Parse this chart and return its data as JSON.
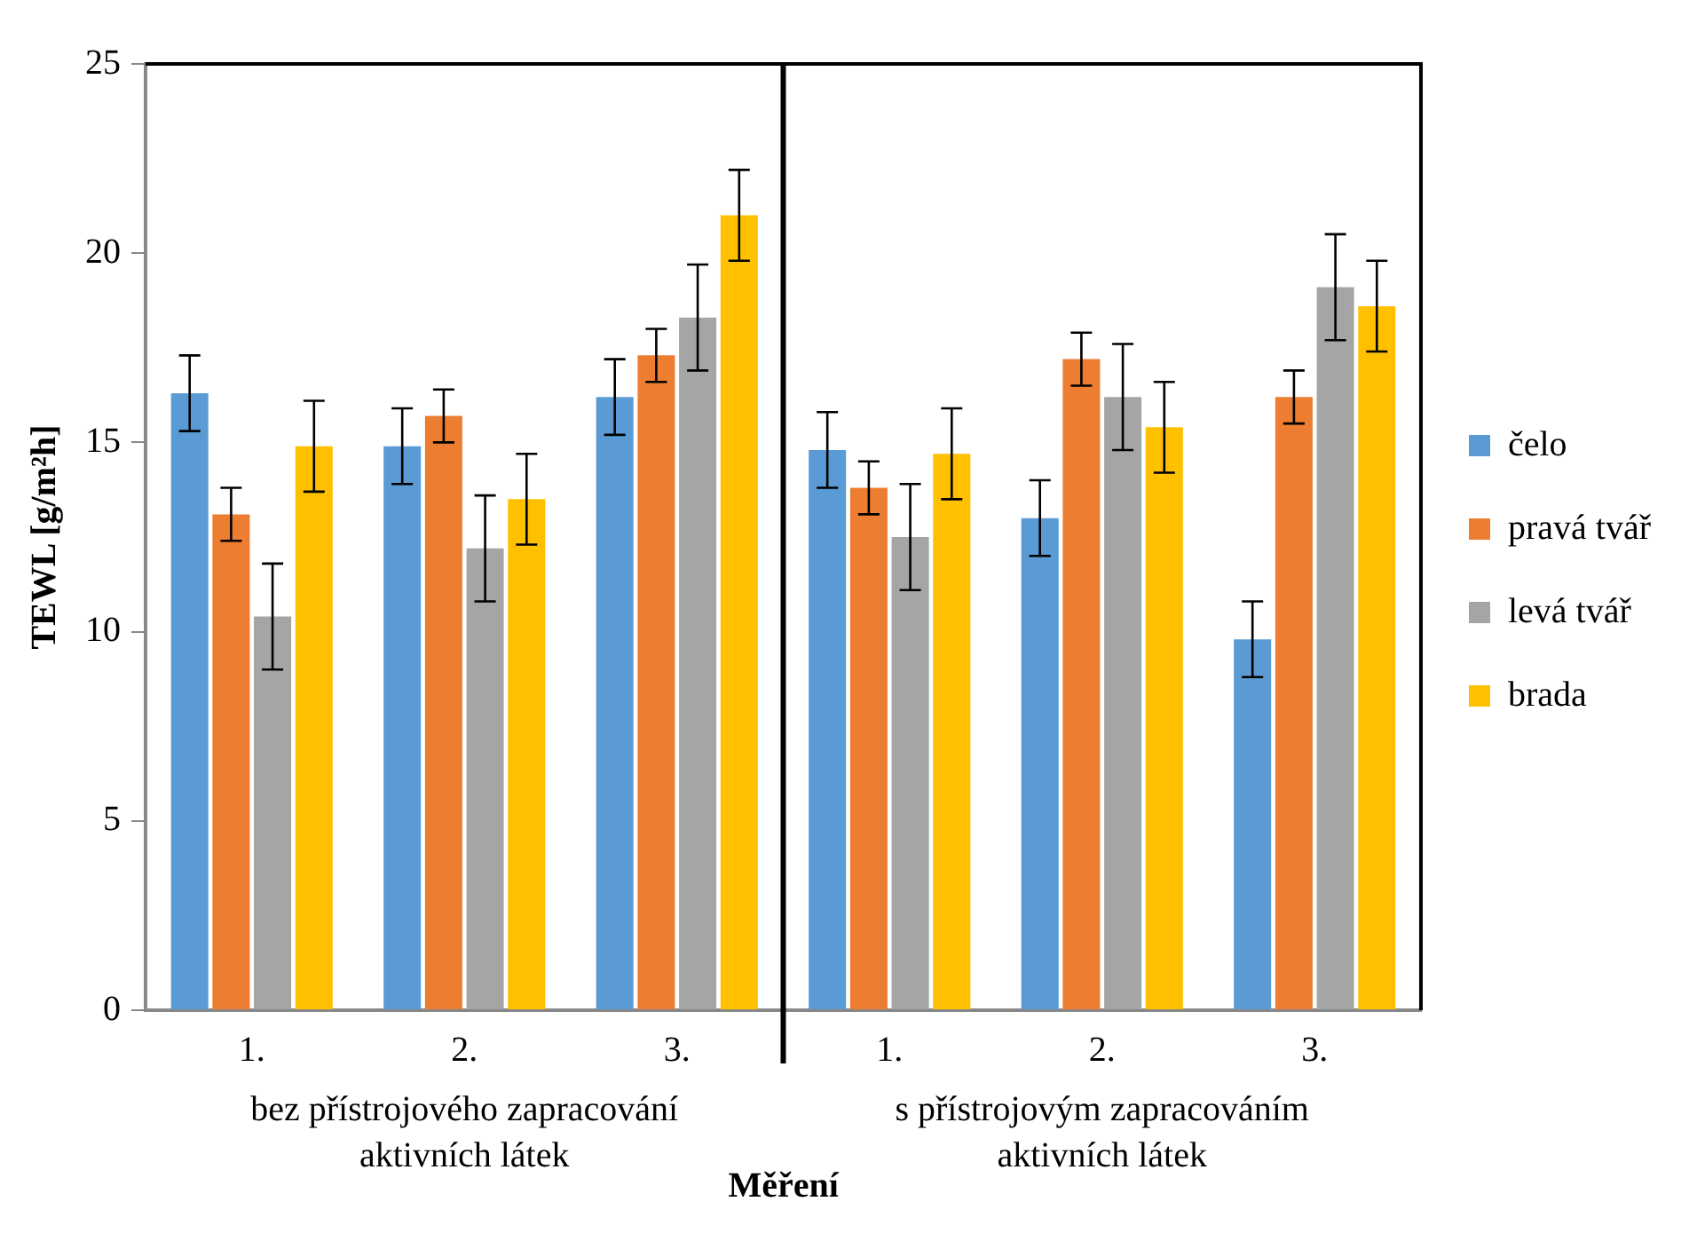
{
  "chart_data": {
    "type": "bar",
    "xlabel": "Měření",
    "ylabel": "TEWL [g/m²h]",
    "categories": [
      "1.",
      "2.",
      "3.",
      "1.",
      "2.",
      "3."
    ],
    "series": [
      {
        "name": "čelo",
        "color": "#5b9bd5",
        "values": [
          16.3,
          14.9,
          16.2,
          14.8,
          13.0,
          9.8
        ],
        "errors": [
          1.0,
          1.0,
          1.0,
          1.0,
          1.0,
          1.0
        ]
      },
      {
        "name": "pravá tvář",
        "color": "#ed7d31",
        "values": [
          13.1,
          15.7,
          17.3,
          13.8,
          17.2,
          16.2
        ],
        "errors": [
          0.7,
          0.7,
          0.7,
          0.7,
          0.7,
          0.7
        ]
      },
      {
        "name": "levá tvář",
        "color": "#a5a5a5",
        "values": [
          10.4,
          12.2,
          18.3,
          12.5,
          16.2,
          19.1
        ],
        "errors": [
          1.4,
          1.4,
          1.4,
          1.4,
          1.4,
          1.4
        ]
      },
      {
        "name": "brada",
        "color": "#ffc000",
        "values": [
          14.9,
          13.5,
          21.0,
          14.7,
          15.4,
          18.6
        ],
        "errors": [
          1.2,
          1.2,
          1.2,
          1.2,
          1.2,
          1.2
        ]
      }
    ],
    "ylim": [
      0,
      25
    ],
    "yticks": [
      0,
      5,
      10,
      15,
      20,
      25
    ],
    "grid": false,
    "legend": "right",
    "annotations": [
      "bez přístrojového zapracování aktivních látek",
      "s přístrojovým zapracováním aktivních látek"
    ]
  }
}
